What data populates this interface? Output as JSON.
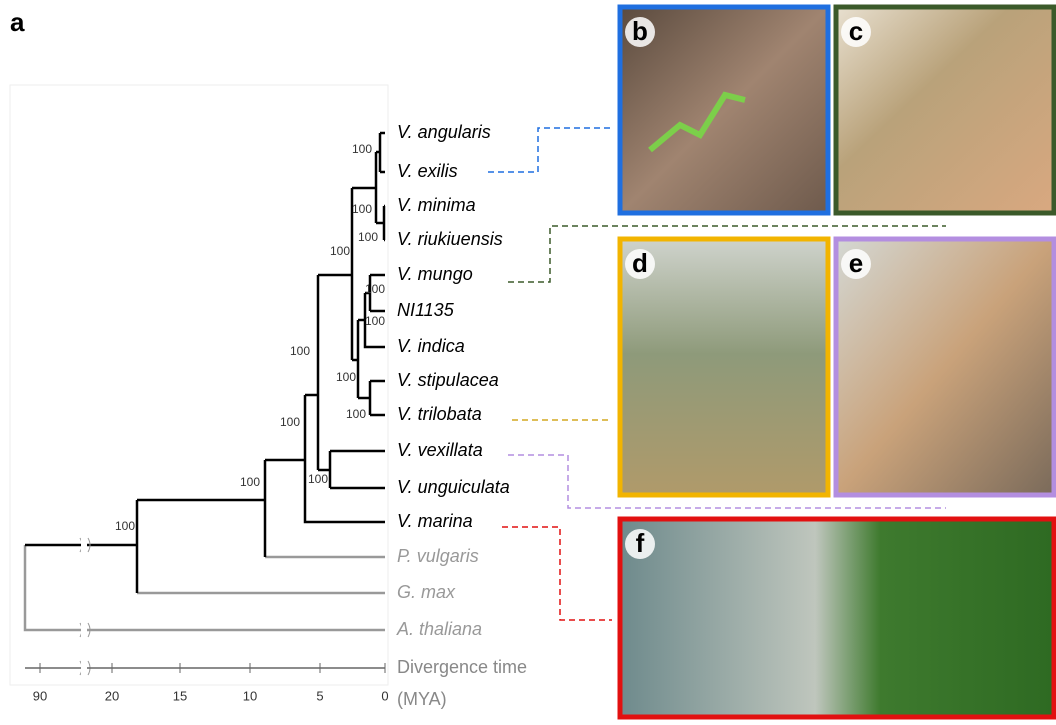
{
  "panel_label": "a",
  "taxa": [
    "V. angularis",
    "V. exilis",
    "V. minima",
    "V. riukiuensis",
    "V. mungo",
    "NI1135",
    "V. indica",
    "V. stipulacea",
    "V. trilobata",
    "V. vexillata",
    "V. unguiculata",
    "V. marina",
    "P. vulgaris",
    "G. max",
    "A. thaliana"
  ],
  "bootstrap": [
    "100",
    "100",
    "100",
    "100",
    "100",
    "100",
    "100",
    "100",
    "100",
    "100",
    "100",
    "100",
    "100"
  ],
  "photos": [
    "b",
    "c",
    "d",
    "e",
    "f"
  ],
  "axis": {
    "ticks": [
      "90",
      "20",
      "15",
      "10",
      "5",
      "0"
    ],
    "label_line_1": "Divergence time",
    "label_line_2": "(MYA)"
  }
}
